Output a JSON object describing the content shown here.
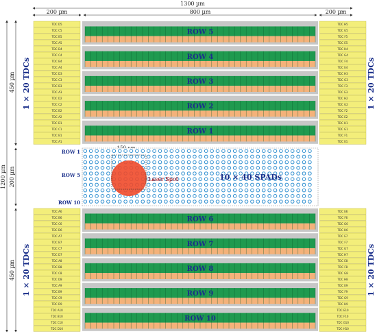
{
  "dimensions": {
    "total_width": "1300 µm",
    "left_width": "200 µm",
    "center_width": "800 µm",
    "right_width": "200 µm",
    "top_height": "450 µm",
    "middle_height": "200 µm",
    "bottom_height": "450 µm",
    "total_height": "1200 µm",
    "spot_size": "150 µm"
  },
  "side_labels": {
    "left_top": "1 × 20 TDCs",
    "right_top": "1 × 20 TDCs",
    "left_bottom": "1 × 20 TDCs",
    "right_bottom": "1 × 20 TDCs"
  },
  "spad_array": {
    "label": "10 × 40 SPADs",
    "laser_label": "Laser Spot",
    "row_labels": [
      "ROW 1",
      "ROW 5",
      "ROW 10"
    ]
  },
  "top_rows": [
    "ROW 5",
    "ROW 4",
    "ROW 3",
    "ROW 2",
    "ROW 1"
  ],
  "bottom_rows": [
    "ROW 6",
    "ROW 7",
    "ROW 8",
    "ROW 9",
    "ROW 10"
  ],
  "tdc_top_left": [
    "TDC D5",
    "TDC C5",
    "TDC B5",
    "TDC A5",
    "TDC D4",
    "TDC C4",
    "TDC B4",
    "TDC A4",
    "TDC D3",
    "TDC C3",
    "TDC B3",
    "TDC A3",
    "TDC D2",
    "TDC C2",
    "TDC B2",
    "TDC A2",
    "TDC D1",
    "TDC C1",
    "TDC B1",
    "TDC A1"
  ],
  "tdc_top_right": [
    "TDC H5",
    "TDC G5",
    "TDC F5",
    "TDC E5",
    "TDC H4",
    "TDC G4",
    "TDC F4",
    "TDC E4",
    "TDC H3",
    "TDC G3",
    "TDC F3",
    "TDC E3",
    "TDC H2",
    "TDC G2",
    "TDC F2",
    "TDC E2",
    "TDC H1",
    "TDC G1",
    "TDC F1",
    "TDC E1"
  ],
  "tdc_bottom_left": [
    "TDC A6",
    "TDC B6",
    "TDC C6",
    "TDC D6",
    "TDC A7",
    "TDC B7",
    "TDC C7",
    "TDC D7",
    "TDC A8",
    "TDC B8",
    "TDC C8",
    "TDC D8",
    "TDC A9",
    "TDC B9",
    "TDC C9",
    "TDC D9",
    "TDC A10",
    "TDC B10",
    "TDC C10",
    "TDC D10"
  ],
  "tdc_bottom_right": [
    "TDC E6",
    "TDC F6",
    "TDC G6",
    "TDC H6",
    "TDC E7",
    "TDC F7",
    "TDC G7",
    "TDC H7",
    "TDC E8",
    "TDC F8",
    "TDC G8",
    "TDC H8",
    "TDC E9",
    "TDC F9",
    "TDC G9",
    "TDC H9",
    "TDC E10",
    "TDC F10",
    "TDC G10",
    "TDC H10"
  ],
  "colors": {
    "tdc_fill": "#f3ee7a",
    "green": "#1f9a4f",
    "orange": "#f4b27a",
    "gray": "#c7c7c7",
    "spad_ring": "#2f8fd0",
    "laser": "#f04a2a",
    "label_blue": "#1a2f8a"
  }
}
